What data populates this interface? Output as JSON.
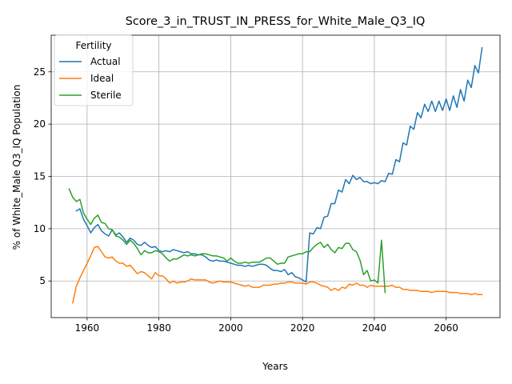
{
  "chart_data": {
    "type": "line",
    "title": "Score_3_in_TRUST_IN_PRESS_for_White_Male_Q3_IQ",
    "xlabel": "Years",
    "ylabel": "% of White_Male Q3_IQ Population",
    "xlim": [
      1950,
      2075
    ],
    "ylim": [
      1.5,
      28.5
    ],
    "xticks": [
      1960,
      1980,
      2000,
      2020,
      2040,
      2060
    ],
    "yticks": [
      5,
      10,
      15,
      20,
      25
    ],
    "grid": true,
    "legend": {
      "title": "Fertility",
      "placement": "top-left"
    },
    "series": [
      {
        "name": "Actual",
        "color": "#1f77b4",
        "points": [
          [
            1957,
            11.7
          ],
          [
            1958,
            11.9
          ],
          [
            1959,
            10.9
          ],
          [
            1960,
            10.3
          ],
          [
            1961,
            9.6
          ],
          [
            1962,
            10.1
          ],
          [
            1963,
            10.4
          ],
          [
            1964,
            9.8
          ],
          [
            1965,
            9.5
          ],
          [
            1966,
            9.3
          ],
          [
            1967,
            9.9
          ],
          [
            1968,
            9.4
          ],
          [
            1969,
            9.6
          ],
          [
            1970,
            9.2
          ],
          [
            1971,
            8.7
          ],
          [
            1972,
            9.1
          ],
          [
            1973,
            8.9
          ],
          [
            1974,
            8.5
          ],
          [
            1975,
            8.4
          ],
          [
            1976,
            8.7
          ],
          [
            1977,
            8.4
          ],
          [
            1978,
            8.2
          ],
          [
            1979,
            8.3
          ],
          [
            1980,
            7.9
          ],
          [
            1981,
            7.8
          ],
          [
            1982,
            7.9
          ],
          [
            1983,
            7.8
          ],
          [
            1984,
            8.0
          ],
          [
            1985,
            7.9
          ],
          [
            1986,
            7.8
          ],
          [
            1987,
            7.7
          ],
          [
            1988,
            7.8
          ],
          [
            1989,
            7.6
          ],
          [
            1990,
            7.6
          ],
          [
            1991,
            7.5
          ],
          [
            1992,
            7.5
          ],
          [
            1993,
            7.3
          ],
          [
            1994,
            7.0
          ],
          [
            1995,
            6.9
          ],
          [
            1996,
            7.0
          ],
          [
            1997,
            6.9
          ],
          [
            1998,
            6.9
          ],
          [
            1999,
            6.8
          ],
          [
            2000,
            6.7
          ],
          [
            2001,
            6.6
          ],
          [
            2002,
            6.5
          ],
          [
            2003,
            6.5
          ],
          [
            2004,
            6.4
          ],
          [
            2005,
            6.5
          ],
          [
            2006,
            6.4
          ],
          [
            2007,
            6.5
          ],
          [
            2008,
            6.6
          ],
          [
            2009,
            6.6
          ],
          [
            2010,
            6.5
          ],
          [
            2011,
            6.2
          ],
          [
            2012,
            6.0
          ],
          [
            2013,
            6.0
          ],
          [
            2014,
            5.9
          ],
          [
            2015,
            6.1
          ],
          [
            2016,
            5.6
          ],
          [
            2017,
            5.8
          ],
          [
            2018,
            5.4
          ],
          [
            2019,
            5.3
          ],
          [
            2020,
            5.1
          ],
          [
            2021,
            4.9
          ],
          [
            2022,
            9.6
          ],
          [
            2023,
            9.5
          ],
          [
            2024,
            10.1
          ],
          [
            2025,
            10.0
          ],
          [
            2026,
            11.1
          ],
          [
            2027,
            11.2
          ],
          [
            2028,
            12.4
          ],
          [
            2029,
            12.4
          ],
          [
            2030,
            13.7
          ],
          [
            2031,
            13.5
          ],
          [
            2032,
            14.7
          ],
          [
            2033,
            14.3
          ],
          [
            2034,
            15.1
          ],
          [
            2035,
            14.7
          ],
          [
            2036,
            14.9
          ],
          [
            2037,
            14.5
          ],
          [
            2038,
            14.5
          ],
          [
            2039,
            14.3
          ],
          [
            2040,
            14.4
          ],
          [
            2041,
            14.3
          ],
          [
            2042,
            14.6
          ],
          [
            2043,
            14.5
          ],
          [
            2044,
            15.3
          ],
          [
            2045,
            15.2
          ],
          [
            2046,
            16.6
          ],
          [
            2047,
            16.4
          ],
          [
            2048,
            18.2
          ],
          [
            2049,
            18.0
          ],
          [
            2050,
            19.8
          ],
          [
            2051,
            19.5
          ],
          [
            2052,
            21.1
          ],
          [
            2053,
            20.6
          ],
          [
            2054,
            21.9
          ],
          [
            2055,
            21.2
          ],
          [
            2056,
            22.2
          ],
          [
            2057,
            21.2
          ],
          [
            2058,
            22.2
          ],
          [
            2059,
            21.3
          ],
          [
            2060,
            22.4
          ],
          [
            2061,
            21.3
          ],
          [
            2062,
            22.7
          ],
          [
            2063,
            21.6
          ],
          [
            2064,
            23.3
          ],
          [
            2065,
            22.2
          ],
          [
            2066,
            24.2
          ],
          [
            2067,
            23.5
          ],
          [
            2068,
            25.6
          ],
          [
            2069,
            24.9
          ],
          [
            2070,
            27.3
          ]
        ]
      },
      {
        "name": "Ideal",
        "color": "#ff7f0e",
        "points": [
          [
            1956,
            2.9
          ],
          [
            1957,
            4.5
          ],
          [
            1958,
            5.3
          ],
          [
            1959,
            6.0
          ],
          [
            1960,
            6.7
          ],
          [
            1961,
            7.4
          ],
          [
            1962,
            8.2
          ],
          [
            1963,
            8.3
          ],
          [
            1964,
            7.8
          ],
          [
            1965,
            7.3
          ],
          [
            1966,
            7.2
          ],
          [
            1967,
            7.3
          ],
          [
            1968,
            6.9
          ],
          [
            1969,
            6.7
          ],
          [
            1970,
            6.7
          ],
          [
            1971,
            6.4
          ],
          [
            1972,
            6.5
          ],
          [
            1973,
            6.1
          ],
          [
            1974,
            5.7
          ],
          [
            1975,
            5.9
          ],
          [
            1976,
            5.8
          ],
          [
            1977,
            5.5
          ],
          [
            1978,
            5.2
          ],
          [
            1979,
            5.8
          ],
          [
            1980,
            5.5
          ],
          [
            1981,
            5.5
          ],
          [
            1982,
            5.2
          ],
          [
            1983,
            4.8
          ],
          [
            1984,
            5.0
          ],
          [
            1985,
            4.8
          ],
          [
            1986,
            4.9
          ],
          [
            1987,
            4.9
          ],
          [
            1988,
            5.0
          ],
          [
            1989,
            5.2
          ],
          [
            1990,
            5.1
          ],
          [
            1991,
            5.1
          ],
          [
            1992,
            5.1
          ],
          [
            1993,
            5.1
          ],
          [
            1994,
            4.9
          ],
          [
            1995,
            4.8
          ],
          [
            1996,
            4.9
          ],
          [
            1997,
            5.0
          ],
          [
            1998,
            4.9
          ],
          [
            1999,
            4.9
          ],
          [
            2000,
            4.9
          ],
          [
            2001,
            4.8
          ],
          [
            2002,
            4.7
          ],
          [
            2003,
            4.6
          ],
          [
            2004,
            4.5
          ],
          [
            2005,
            4.6
          ],
          [
            2006,
            4.4
          ],
          [
            2007,
            4.4
          ],
          [
            2008,
            4.4
          ],
          [
            2009,
            4.6
          ],
          [
            2010,
            4.6
          ],
          [
            2011,
            4.6
          ],
          [
            2012,
            4.7
          ],
          [
            2013,
            4.7
          ],
          [
            2014,
            4.8
          ],
          [
            2015,
            4.8
          ],
          [
            2016,
            4.9
          ],
          [
            2017,
            4.9
          ],
          [
            2018,
            4.8
          ],
          [
            2019,
            4.8
          ],
          [
            2020,
            4.8
          ],
          [
            2021,
            4.7
          ],
          [
            2022,
            4.9
          ],
          [
            2023,
            4.9
          ],
          [
            2024,
            4.8
          ],
          [
            2025,
            4.6
          ],
          [
            2026,
            4.5
          ],
          [
            2027,
            4.4
          ],
          [
            2028,
            4.1
          ],
          [
            2029,
            4.3
          ],
          [
            2030,
            4.1
          ],
          [
            2031,
            4.4
          ],
          [
            2032,
            4.3
          ],
          [
            2033,
            4.7
          ],
          [
            2034,
            4.6
          ],
          [
            2035,
            4.8
          ],
          [
            2036,
            4.6
          ],
          [
            2037,
            4.6
          ],
          [
            2038,
            4.4
          ],
          [
            2039,
            4.6
          ],
          [
            2040,
            4.5
          ],
          [
            2041,
            4.5
          ],
          [
            2042,
            4.5
          ],
          [
            2043,
            4.5
          ],
          [
            2044,
            4.5
          ],
          [
            2045,
            4.6
          ],
          [
            2046,
            4.4
          ],
          [
            2047,
            4.4
          ],
          [
            2048,
            4.2
          ],
          [
            2049,
            4.2
          ],
          [
            2050,
            4.1
          ],
          [
            2051,
            4.1
          ],
          [
            2052,
            4.1
          ],
          [
            2053,
            4.0
          ],
          [
            2054,
            4.0
          ],
          [
            2055,
            4.0
          ],
          [
            2056,
            3.9
          ],
          [
            2057,
            4.0
          ],
          [
            2058,
            4.0
          ],
          [
            2059,
            4.0
          ],
          [
            2060,
            4.0
          ],
          [
            2061,
            3.9
          ],
          [
            2062,
            3.9
          ],
          [
            2063,
            3.9
          ],
          [
            2064,
            3.8
          ],
          [
            2065,
            3.8
          ],
          [
            2066,
            3.8
          ],
          [
            2067,
            3.7
          ],
          [
            2068,
            3.8
          ],
          [
            2069,
            3.7
          ],
          [
            2070,
            3.7
          ]
        ]
      },
      {
        "name": "Sterile",
        "color": "#2ca02c",
        "points": [
          [
            1955,
            13.8
          ],
          [
            1956,
            13.0
          ],
          [
            1957,
            12.6
          ],
          [
            1958,
            12.8
          ],
          [
            1959,
            11.5
          ],
          [
            1960,
            10.9
          ],
          [
            1961,
            10.4
          ],
          [
            1962,
            11.0
          ],
          [
            1963,
            11.3
          ],
          [
            1964,
            10.6
          ],
          [
            1965,
            10.5
          ],
          [
            1966,
            10.0
          ],
          [
            1967,
            9.9
          ],
          [
            1968,
            9.3
          ],
          [
            1969,
            9.2
          ],
          [
            1970,
            8.9
          ],
          [
            1971,
            8.5
          ],
          [
            1972,
            8.9
          ],
          [
            1973,
            8.6
          ],
          [
            1974,
            8.1
          ],
          [
            1975,
            7.5
          ],
          [
            1976,
            7.9
          ],
          [
            1977,
            7.7
          ],
          [
            1978,
            7.7
          ],
          [
            1979,
            7.9
          ],
          [
            1980,
            7.8
          ],
          [
            1981,
            7.6
          ],
          [
            1982,
            7.2
          ],
          [
            1983,
            6.9
          ],
          [
            1984,
            7.1
          ],
          [
            1985,
            7.1
          ],
          [
            1986,
            7.3
          ],
          [
            1987,
            7.5
          ],
          [
            1988,
            7.4
          ],
          [
            1989,
            7.5
          ],
          [
            1990,
            7.4
          ],
          [
            1991,
            7.5
          ],
          [
            1992,
            7.6
          ],
          [
            1993,
            7.6
          ],
          [
            1994,
            7.5
          ],
          [
            1995,
            7.4
          ],
          [
            1996,
            7.4
          ],
          [
            1997,
            7.3
          ],
          [
            1998,
            7.2
          ],
          [
            1999,
            6.9
          ],
          [
            2000,
            7.2
          ],
          [
            2001,
            6.9
          ],
          [
            2002,
            6.7
          ],
          [
            2003,
            6.7
          ],
          [
            2004,
            6.8
          ],
          [
            2005,
            6.7
          ],
          [
            2006,
            6.8
          ],
          [
            2007,
            6.8
          ],
          [
            2008,
            6.8
          ],
          [
            2009,
            7.0
          ],
          [
            2010,
            7.2
          ],
          [
            2011,
            7.2
          ],
          [
            2012,
            6.9
          ],
          [
            2013,
            6.6
          ],
          [
            2014,
            6.7
          ],
          [
            2015,
            6.7
          ],
          [
            2016,
            7.3
          ],
          [
            2017,
            7.4
          ],
          [
            2018,
            7.5
          ],
          [
            2019,
            7.6
          ],
          [
            2020,
            7.6
          ],
          [
            2021,
            7.8
          ],
          [
            2022,
            7.8
          ],
          [
            2023,
            8.2
          ],
          [
            2024,
            8.5
          ],
          [
            2025,
            8.7
          ],
          [
            2026,
            8.2
          ],
          [
            2027,
            8.5
          ],
          [
            2028,
            8.0
          ],
          [
            2029,
            7.7
          ],
          [
            2030,
            8.2
          ],
          [
            2031,
            8.1
          ],
          [
            2032,
            8.6
          ],
          [
            2033,
            8.6
          ],
          [
            2034,
            8.0
          ],
          [
            2035,
            7.8
          ],
          [
            2036,
            7.0
          ],
          [
            2037,
            5.6
          ],
          [
            2038,
            6.0
          ],
          [
            2039,
            5.0
          ],
          [
            2040,
            5.1
          ],
          [
            2041,
            4.8
          ],
          [
            2042,
            8.9
          ],
          [
            2043,
            3.9
          ]
        ]
      }
    ]
  }
}
